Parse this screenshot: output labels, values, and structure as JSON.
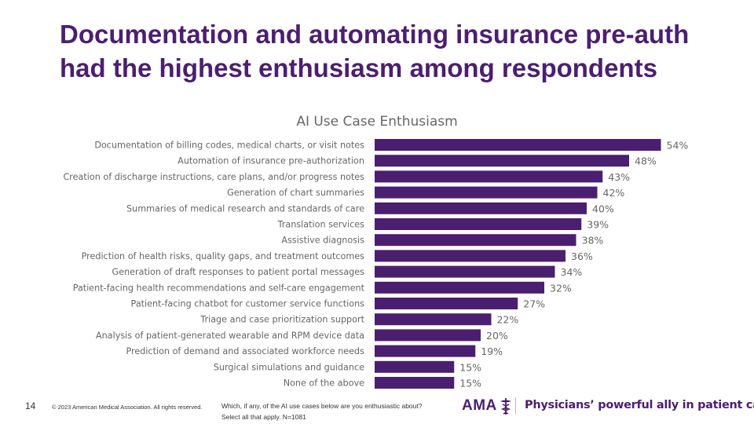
{
  "slide": {
    "title": "Documentation and automating insurance pre-auth had the highest enthusiasm among respondents",
    "page_number": "14",
    "copyright": "© 2023 American Medical Association. All rights reserved.",
    "footnote_line1": "Which, if any, of the AI use cases below are you enthusiastic about?",
    "footnote_line2": "Select all that apply. N=1081",
    "logo_text": "AMA",
    "tagline": "Physicians’ powerful ally in patient care"
  },
  "colors": {
    "title": "#4b1f6f",
    "bar": "#4b1f6f",
    "label": "#666666",
    "value_label": "#666666"
  },
  "chart_data": {
    "type": "bar",
    "orientation": "horizontal",
    "title": "AI Use Case Enthusiasm",
    "xlabel": "",
    "ylabel": "",
    "xlim": [
      0,
      60
    ],
    "grid": false,
    "legend": "none",
    "unit": "%",
    "categories": [
      "Documentation of billing codes, medical charts, or visit notes",
      "Automation of insurance pre-authorization",
      "Creation of discharge instructions, care plans, and/or progress notes",
      "Generation of chart summaries",
      "Summaries of medical research and standards of care",
      "Translation services",
      "Assistive diagnosis",
      "Prediction of health risks, quality gaps, and treatment outcomes",
      "Generation of draft responses to patient portal messages",
      "Patient-facing health recommendations and self-care engagement",
      "Patient-facing chatbot for customer service functions",
      "Triage and case prioritization support",
      "Analysis of patient-generated wearable and RPM device data",
      "Prediction of demand and associated workforce needs",
      "Surgical simulations and guidance",
      "None of the above"
    ],
    "values": [
      54,
      48,
      43,
      42,
      40,
      39,
      38,
      36,
      34,
      32,
      27,
      22,
      20,
      19,
      15,
      15
    ],
    "value_labels": [
      "54%",
      "48%",
      "43%",
      "42%",
      "40%",
      "39%",
      "38%",
      "36%",
      "34%",
      "32%",
      "27%",
      "22%",
      "20%",
      "19%",
      "15%",
      "15%"
    ]
  }
}
